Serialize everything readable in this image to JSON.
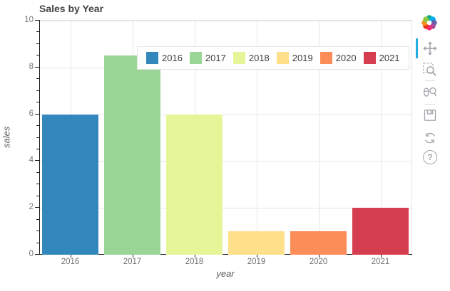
{
  "title": "Sales by Year",
  "chart_data": {
    "type": "bar",
    "categories": [
      "2016",
      "2017",
      "2018",
      "2019",
      "2020",
      "2021"
    ],
    "values": [
      6,
      8.5,
      6,
      1,
      1,
      2
    ],
    "colors": [
      "#3288bd",
      "#99d594",
      "#e6f598",
      "#fee08b",
      "#fc8d59",
      "#d53e4f"
    ],
    "title": "Sales by Year",
    "xlabel": "year",
    "ylabel": "sales",
    "ylim": [
      0,
      10
    ],
    "yticks": [
      0,
      2,
      4,
      6,
      8,
      10
    ],
    "y_minor_tick_step": 0.5,
    "grid": true,
    "legend_position": "top-center",
    "legend_entries": [
      "2016",
      "2017",
      "2018",
      "2019",
      "2020",
      "2021"
    ]
  },
  "style_colors": {
    "grid": "#e5e5e5",
    "axis": "#1a1a1a",
    "title_text": "#444444",
    "tick_text": "#737373",
    "toolbar_icon": "#a6a6ad",
    "active_tool_indicator": "#26aae1",
    "legend_border": "#e5e5e5"
  },
  "toolbar": {
    "orientation": "vertical-right",
    "logo_colors": [
      "#00a78e",
      "#00aeef",
      "#5f64ae",
      "#a44d9d",
      "#ed2d7c",
      "#ee3124",
      "#f6921e",
      "#8cc63f"
    ],
    "tools": [
      {
        "name": "pan",
        "active": true
      },
      {
        "name": "box-zoom",
        "active": false
      },
      {
        "name": "wheel-zoom",
        "active": false
      },
      {
        "name": "save",
        "active": false
      },
      {
        "name": "reset",
        "active": false
      },
      {
        "name": "help",
        "active": false
      }
    ],
    "help_glyph": "?"
  }
}
